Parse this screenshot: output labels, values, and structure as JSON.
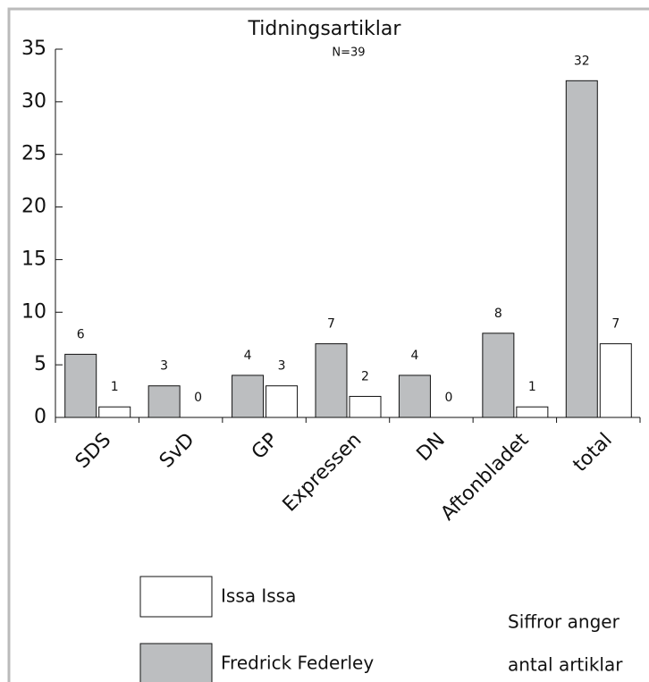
{
  "chart_data": {
    "type": "bar",
    "title": "Tidningsartiklar",
    "subtitle": "N=39",
    "categories": [
      "SDS",
      "SvD",
      "GP",
      "Expressen",
      "DN",
      "Aftonbladet",
      "total"
    ],
    "series": [
      {
        "name": "Issa Issa",
        "color": "#ffffff",
        "values": [
          1,
          0,
          3,
          2,
          0,
          1,
          7
        ]
      },
      {
        "name": "Fredrick Federley",
        "color": "#bcbec0",
        "values": [
          6,
          3,
          4,
          7,
          4,
          8,
          32
        ]
      }
    ],
    "ylim": [
      0,
      35
    ],
    "yticks": [
      0,
      5,
      10,
      15,
      20,
      25,
      30,
      35
    ],
    "annotations": [
      "Siffror anger",
      "antal artiklar"
    ]
  }
}
